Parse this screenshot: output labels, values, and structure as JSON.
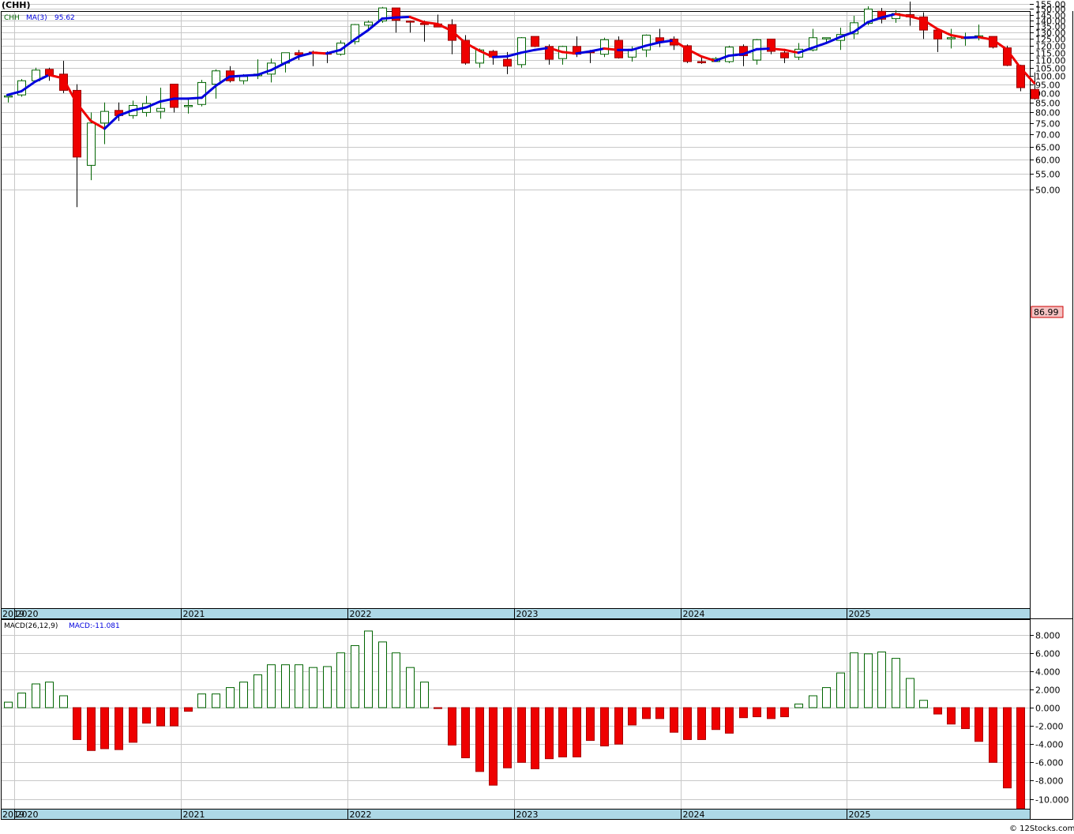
{
  "title": "(CHH)",
  "price_legend": {
    "symbol": "CHH",
    "ma_label": "MA(3)",
    "ma_value": "95.62"
  },
  "last_price_label": "86.99",
  "macd_legend": {
    "label": "MACD(26,12,9)",
    "value_label": "MACD:-11.081"
  },
  "watermark": "© 12Stocks.com",
  "year_labels": [
    "2019",
    "2020",
    "2021",
    "2022",
    "2023",
    "2024",
    "2025"
  ],
  "price_ticks": [
    "155.00",
    "150.00",
    "145.00",
    "140.00",
    "135.00",
    "130.00",
    "125.00",
    "120.00",
    "115.00",
    "110.00",
    "105.00",
    "100.00",
    "95.00",
    "90.00",
    "85.00",
    "80.00",
    "75.00",
    "70.00",
    "65.00",
    "60.00",
    "55.00",
    "50.00"
  ],
  "macd_ticks": [
    "8.000",
    "6.000",
    "4.000",
    "2.000",
    "0.000",
    "-2.000",
    "-4.000",
    "-6.000",
    "-8.000",
    "-10.000"
  ],
  "colors": {
    "up": "#006400",
    "down": "#ee0000",
    "ma_up": "#0000dd",
    "ma_down": "#ee0000",
    "grid": "#c8c8c8",
    "axis_band": "#add8e6"
  },
  "chart_data": [
    {
      "type": "candlestick",
      "title": "(CHH)",
      "yscale": "log",
      "ylim": [
        45,
        160
      ],
      "period": "monthly",
      "start": "2019-12",
      "candles": [
        [
          88.5,
          89,
          85,
          88.5
        ],
        [
          89,
          98,
          88,
          97
        ],
        [
          97,
          105,
          96,
          103.5
        ],
        [
          104,
          105,
          97,
          100.5
        ],
        [
          101,
          109.5,
          90,
          91.5
        ],
        [
          91.5,
          95,
          45,
          61
        ],
        [
          58,
          80,
          53,
          75
        ],
        [
          75,
          85,
          66,
          80.5
        ],
        [
          81,
          85,
          76,
          78.5
        ],
        [
          78.5,
          86,
          77,
          83.5
        ],
        [
          80,
          88.5,
          78,
          84.5
        ],
        [
          80.5,
          93,
          77,
          82
        ],
        [
          95,
          95,
          80,
          82.5
        ],
        [
          83,
          87,
          79.5,
          83.5
        ],
        [
          84,
          97.5,
          83,
          96
        ],
        [
          95,
          104,
          87,
          103
        ],
        [
          103,
          106,
          96,
          97
        ],
        [
          97,
          101,
          95,
          99.5
        ],
        [
          100,
          110.5,
          98,
          101
        ],
        [
          101,
          111,
          96,
          108
        ],
        [
          108,
          115,
          102,
          115
        ],
        [
          115,
          117,
          110,
          113.5
        ],
        [
          115.5,
          116.5,
          106,
          115
        ],
        [
          115,
          116,
          108,
          114
        ],
        [
          114,
          124,
          113,
          122
        ],
        [
          123,
          137,
          121,
          136.5
        ],
        [
          136,
          140,
          131,
          138.5
        ],
        [
          139.5,
          152,
          138,
          151
        ],
        [
          151,
          151,
          130,
          140
        ],
        [
          139.5,
          140,
          130,
          139
        ],
        [
          137.5,
          140,
          123,
          137
        ],
        [
          137,
          145,
          135,
          134.5
        ],
        [
          136.5,
          141,
          114,
          124
        ],
        [
          124,
          128,
          107,
          108
        ],
        [
          108,
          118,
          105,
          117
        ],
        [
          116,
          117,
          107,
          112
        ],
        [
          110.5,
          115.5,
          101,
          106
        ],
        [
          107,
          126.5,
          105,
          126
        ],
        [
          127,
          127,
          119,
          119.5
        ],
        [
          119.5,
          121,
          107,
          110.5
        ],
        [
          111,
          120,
          107,
          119.5
        ],
        [
          119.5,
          127,
          112,
          114
        ],
        [
          116,
          117,
          108,
          115
        ],
        [
          114,
          126,
          112,
          124.5
        ],
        [
          124,
          127,
          111,
          111.5
        ],
        [
          112,
          119.5,
          109,
          117.5
        ],
        [
          117,
          128.5,
          112,
          128
        ],
        [
          126,
          133,
          119,
          123
        ],
        [
          125,
          127,
          117,
          120.5
        ],
        [
          120,
          121,
          108,
          109
        ],
        [
          109,
          112,
          107.5,
          108.5
        ],
        [
          109,
          112,
          109,
          111
        ],
        [
          109,
          120,
          108,
          119
        ],
        [
          119.5,
          121,
          106,
          113
        ],
        [
          110,
          125,
          107,
          124.5
        ],
        [
          125,
          125,
          114,
          116
        ],
        [
          115,
          117,
          108,
          111.5
        ],
        [
          112,
          122,
          110,
          117.5
        ],
        [
          117,
          133,
          116,
          126
        ],
        [
          126,
          126,
          122,
          126
        ],
        [
          124,
          134,
          117,
          128.5
        ],
        [
          129,
          144,
          125,
          138
        ],
        [
          137.5,
          152.5,
          136,
          150
        ],
        [
          148,
          151,
          137.5,
          141
        ],
        [
          141.5,
          149,
          138,
          146
        ],
        [
          145,
          157,
          135.5,
          143
        ],
        [
          143,
          147,
          125,
          132
        ],
        [
          132,
          133,
          115.5,
          125
        ],
        [
          125.5,
          133,
          118,
          126
        ],
        [
          125.5,
          130,
          120,
          126.5
        ],
        [
          126.5,
          136.5,
          124,
          127.5
        ],
        [
          127,
          127,
          118,
          119
        ],
        [
          118.5,
          120,
          106,
          106.5
        ],
        [
          106.5,
          107,
          91,
          93
        ],
        [
          92,
          102,
          86.5,
          86.99
        ]
      ],
      "ma3": [
        89,
        91,
        96.5,
        100.5,
        98.5,
        84.5,
        76,
        72.5,
        78.5,
        81,
        82.5,
        85.5,
        87,
        87,
        87.5,
        94,
        99.5,
        100,
        100.5,
        103.5,
        108,
        112.5,
        115,
        114.5,
        117,
        124.5,
        132,
        141.5,
        142.5,
        143,
        138.5,
        137,
        131.5,
        122,
        116.5,
        112,
        112.5,
        115,
        117,
        118.5,
        115.5,
        114.5,
        116,
        118,
        117,
        117,
        120,
        122.5,
        124,
        117.5,
        112.5,
        109.5,
        113,
        114,
        117.5,
        118,
        117,
        115,
        118.5,
        122,
        126.5,
        130.5,
        138.5,
        142.5,
        145.5,
        143.5,
        140.5,
        133,
        128,
        126,
        126.5,
        124.5,
        117.5,
        105,
        95.62
      ],
      "last_price": 86.99,
      "moving_average": {
        "label": "MA(3)",
        "value": 95.62
      }
    },
    {
      "type": "bar",
      "title": "MACD(26,12,9)",
      "ylim": [
        -11.2,
        9
      ],
      "values": [
        0.6,
        1.6,
        2.6,
        2.8,
        1.3,
        -3.5,
        -4.7,
        -4.5,
        -4.6,
        -3.8,
        -1.7,
        -2,
        -2,
        -0.4,
        1.5,
        1.5,
        2.2,
        2.8,
        3.6,
        4.7,
        4.7,
        4.7,
        4.4,
        4.5,
        6,
        6.8,
        8.4,
        7.2,
        6,
        4.4,
        2.8,
        -0.1,
        -4.1,
        -5.5,
        -7,
        -8.5,
        -6.6,
        -6,
        -6.7,
        -5.6,
        -5.4,
        -5.4,
        -3.6,
        -4.2,
        -4,
        -1.9,
        -1.2,
        -1.2,
        -2.7,
        -3.5,
        -3.5,
        -2.4,
        -2.8,
        -1.1,
        -1,
        -1.2,
        -1,
        0.4,
        1.3,
        2.2,
        3.8,
        6,
        5.9,
        6.1,
        5.4,
        3.2,
        0.8,
        -0.7,
        -1.8,
        -2.3,
        -3.7,
        -6,
        -8.8,
        -11.081
      ],
      "value_label": "MACD:-11.081"
    }
  ]
}
